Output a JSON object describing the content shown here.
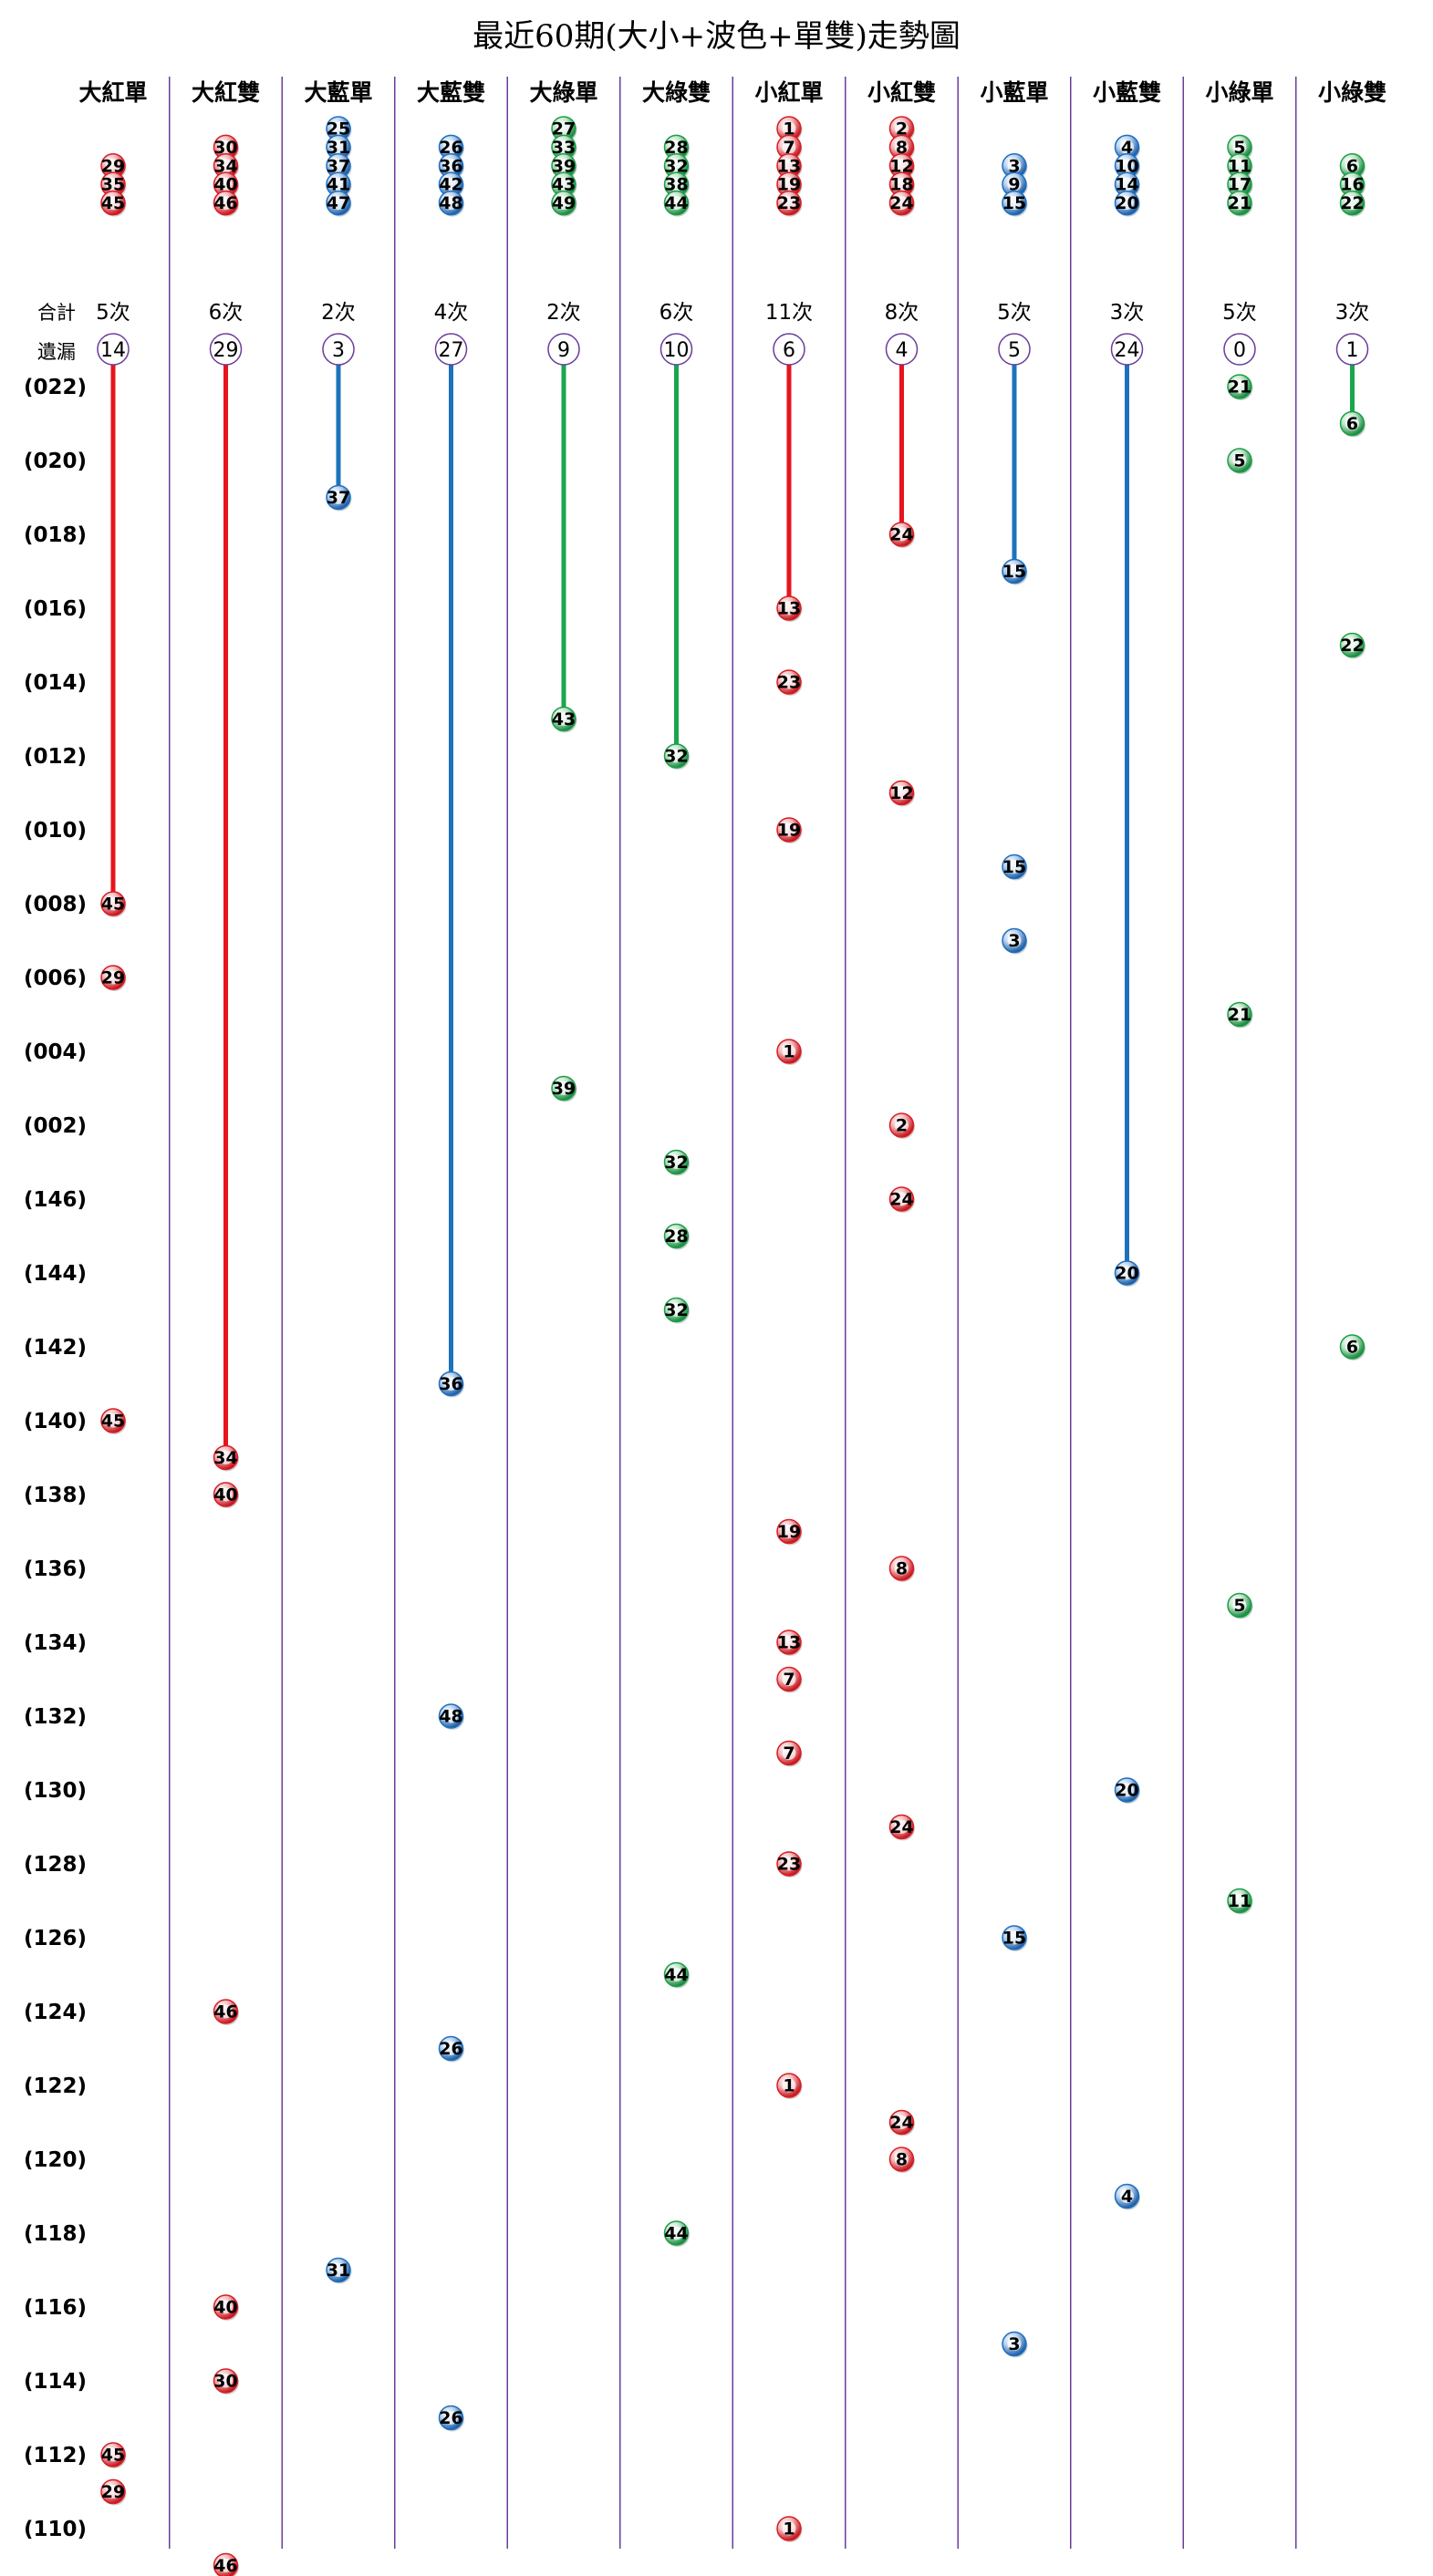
{
  "title": "最近60期(大小+波色+單雙)走勢圖",
  "row_labels": {
    "total": "合計",
    "missing": "遺漏"
  },
  "colors": {
    "red": "#d61f26",
    "blue": "#1f6fbf",
    "green": "#1e9e4a",
    "divider": "#6a3d9a",
    "line_red": "#e8141b",
    "line_blue": "#1c73bc",
    "line_green": "#1aa64f"
  },
  "chart_data": {
    "type": "table",
    "periods": [
      "(022)",
      "(021)",
      "(020)",
      "(019)",
      "(018)",
      "(017)",
      "(016)",
      "(015)",
      "(014)",
      "(013)",
      "(012)",
      "(011)",
      "(010)",
      "(009)",
      "(008)",
      "(007)",
      "(006)",
      "(005)",
      "(004)",
      "(003)",
      "(002)",
      "(001)",
      "(146)",
      "(145)",
      "(144)",
      "(143)",
      "(142)",
      "(141)",
      "(140)",
      "(139)",
      "(138)",
      "(137)",
      "(136)",
      "(135)",
      "(134)",
      "(133)",
      "(132)",
      "(131)",
      "(130)",
      "(129)",
      "(128)",
      "(127)",
      "(126)",
      "(125)",
      "(124)",
      "(123)",
      "(122)",
      "(121)",
      "(120)",
      "(119)",
      "(118)",
      "(117)",
      "(116)",
      "(115)",
      "(114)",
      "(113)",
      "(112)",
      "(111)",
      "(110)",
      "(109)"
    ],
    "period_label_every": 2,
    "columns": [
      {
        "name": "大紅單",
        "color": "red",
        "total": "5次",
        "missing": "14",
        "numbers": [
          "29",
          "35",
          "45"
        ],
        "hits": [
          {
            "p": "(008)",
            "n": "45"
          },
          {
            "p": "(006)",
            "n": "29"
          },
          {
            "p": "(140)",
            "n": "45"
          },
          {
            "p": "(112)",
            "n": "45"
          },
          {
            "p": "(111)",
            "n": "29"
          }
        ]
      },
      {
        "name": "大紅雙",
        "color": "red",
        "total": "6次",
        "missing": "29",
        "numbers": [
          "30",
          "34",
          "40",
          "46"
        ],
        "hits": [
          {
            "p": "(139)",
            "n": "34"
          },
          {
            "p": "(138)",
            "n": "40"
          },
          {
            "p": "(124)",
            "n": "46"
          },
          {
            "p": "(116)",
            "n": "40"
          },
          {
            "p": "(114)",
            "n": "30"
          },
          {
            "p": "(109)",
            "n": "46"
          }
        ]
      },
      {
        "name": "大藍單",
        "color": "blue",
        "total": "2次",
        "missing": "3",
        "numbers": [
          "25",
          "31",
          "37",
          "41",
          "47"
        ],
        "hits": [
          {
            "p": "(019)",
            "n": "37"
          },
          {
            "p": "(117)",
            "n": "31"
          }
        ]
      },
      {
        "name": "大藍雙",
        "color": "blue",
        "total": "4次",
        "missing": "27",
        "numbers": [
          "26",
          "36",
          "42",
          "48"
        ],
        "hits": [
          {
            "p": "(141)",
            "n": "36"
          },
          {
            "p": "(132)",
            "n": "48"
          },
          {
            "p": "(123)",
            "n": "26"
          },
          {
            "p": "(113)",
            "n": "26"
          }
        ]
      },
      {
        "name": "大綠單",
        "color": "green",
        "total": "2次",
        "missing": "9",
        "numbers": [
          "27",
          "33",
          "39",
          "43",
          "49"
        ],
        "hits": [
          {
            "p": "(013)",
            "n": "43"
          },
          {
            "p": "(003)",
            "n": "39"
          }
        ]
      },
      {
        "name": "大綠雙",
        "color": "green",
        "total": "6次",
        "missing": "10",
        "numbers": [
          "28",
          "32",
          "38",
          "44"
        ],
        "hits": [
          {
            "p": "(012)",
            "n": "32"
          },
          {
            "p": "(001)",
            "n": "32"
          },
          {
            "p": "(145)",
            "n": "28"
          },
          {
            "p": "(143)",
            "n": "32"
          },
          {
            "p": "(125)",
            "n": "44"
          },
          {
            "p": "(118)",
            "n": "44"
          }
        ]
      },
      {
        "name": "小紅單",
        "color": "red",
        "total": "11次",
        "missing": "6",
        "numbers": [
          "1",
          "7",
          "13",
          "19",
          "23"
        ],
        "hits": [
          {
            "p": "(016)",
            "n": "13"
          },
          {
            "p": "(014)",
            "n": "23"
          },
          {
            "p": "(010)",
            "n": "19"
          },
          {
            "p": "(004)",
            "n": "1"
          },
          {
            "p": "(137)",
            "n": "19"
          },
          {
            "p": "(134)",
            "n": "13"
          },
          {
            "p": "(133)",
            "n": "7"
          },
          {
            "p": "(131)",
            "n": "7"
          },
          {
            "p": "(128)",
            "n": "23"
          },
          {
            "p": "(122)",
            "n": "1"
          },
          {
            "p": "(110)",
            "n": "1"
          }
        ]
      },
      {
        "name": "小紅雙",
        "color": "red",
        "total": "8次",
        "missing": "4",
        "numbers": [
          "2",
          "8",
          "12",
          "18",
          "24"
        ],
        "hits": [
          {
            "p": "(018)",
            "n": "24"
          },
          {
            "p": "(011)",
            "n": "12"
          },
          {
            "p": "(002)",
            "n": "2"
          },
          {
            "p": "(146)",
            "n": "24"
          },
          {
            "p": "(136)",
            "n": "8"
          },
          {
            "p": "(129)",
            "n": "24"
          },
          {
            "p": "(121)",
            "n": "24"
          },
          {
            "p": "(120)",
            "n": "8"
          }
        ]
      },
      {
        "name": "小藍單",
        "color": "blue",
        "total": "5次",
        "missing": "5",
        "numbers": [
          "3",
          "9",
          "15"
        ],
        "hits": [
          {
            "p": "(017)",
            "n": "15"
          },
          {
            "p": "(009)",
            "n": "15"
          },
          {
            "p": "(007)",
            "n": "3"
          },
          {
            "p": "(126)",
            "n": "15"
          },
          {
            "p": "(115)",
            "n": "3"
          }
        ]
      },
      {
        "name": "小藍雙",
        "color": "blue",
        "total": "3次",
        "missing": "24",
        "numbers": [
          "4",
          "10",
          "14",
          "20"
        ],
        "hits": [
          {
            "p": "(144)",
            "n": "20"
          },
          {
            "p": "(130)",
            "n": "20"
          },
          {
            "p": "(119)",
            "n": "4"
          }
        ]
      },
      {
        "name": "小綠單",
        "color": "green",
        "total": "5次",
        "missing": "0",
        "numbers": [
          "5",
          "11",
          "17",
          "21"
        ],
        "hits": [
          {
            "p": "(022)",
            "n": "21"
          },
          {
            "p": "(020)",
            "n": "5"
          },
          {
            "p": "(005)",
            "n": "21"
          },
          {
            "p": "(135)",
            "n": "5"
          },
          {
            "p": "(127)",
            "n": "11"
          }
        ]
      },
      {
        "name": "小綠雙",
        "color": "green",
        "total": "3次",
        "missing": "1",
        "numbers": [
          "6",
          "16",
          "22"
        ],
        "hits": [
          {
            "p": "(021)",
            "n": "6"
          },
          {
            "p": "(015)",
            "n": "22"
          },
          {
            "p": "(142)",
            "n": "6"
          }
        ]
      }
    ]
  }
}
